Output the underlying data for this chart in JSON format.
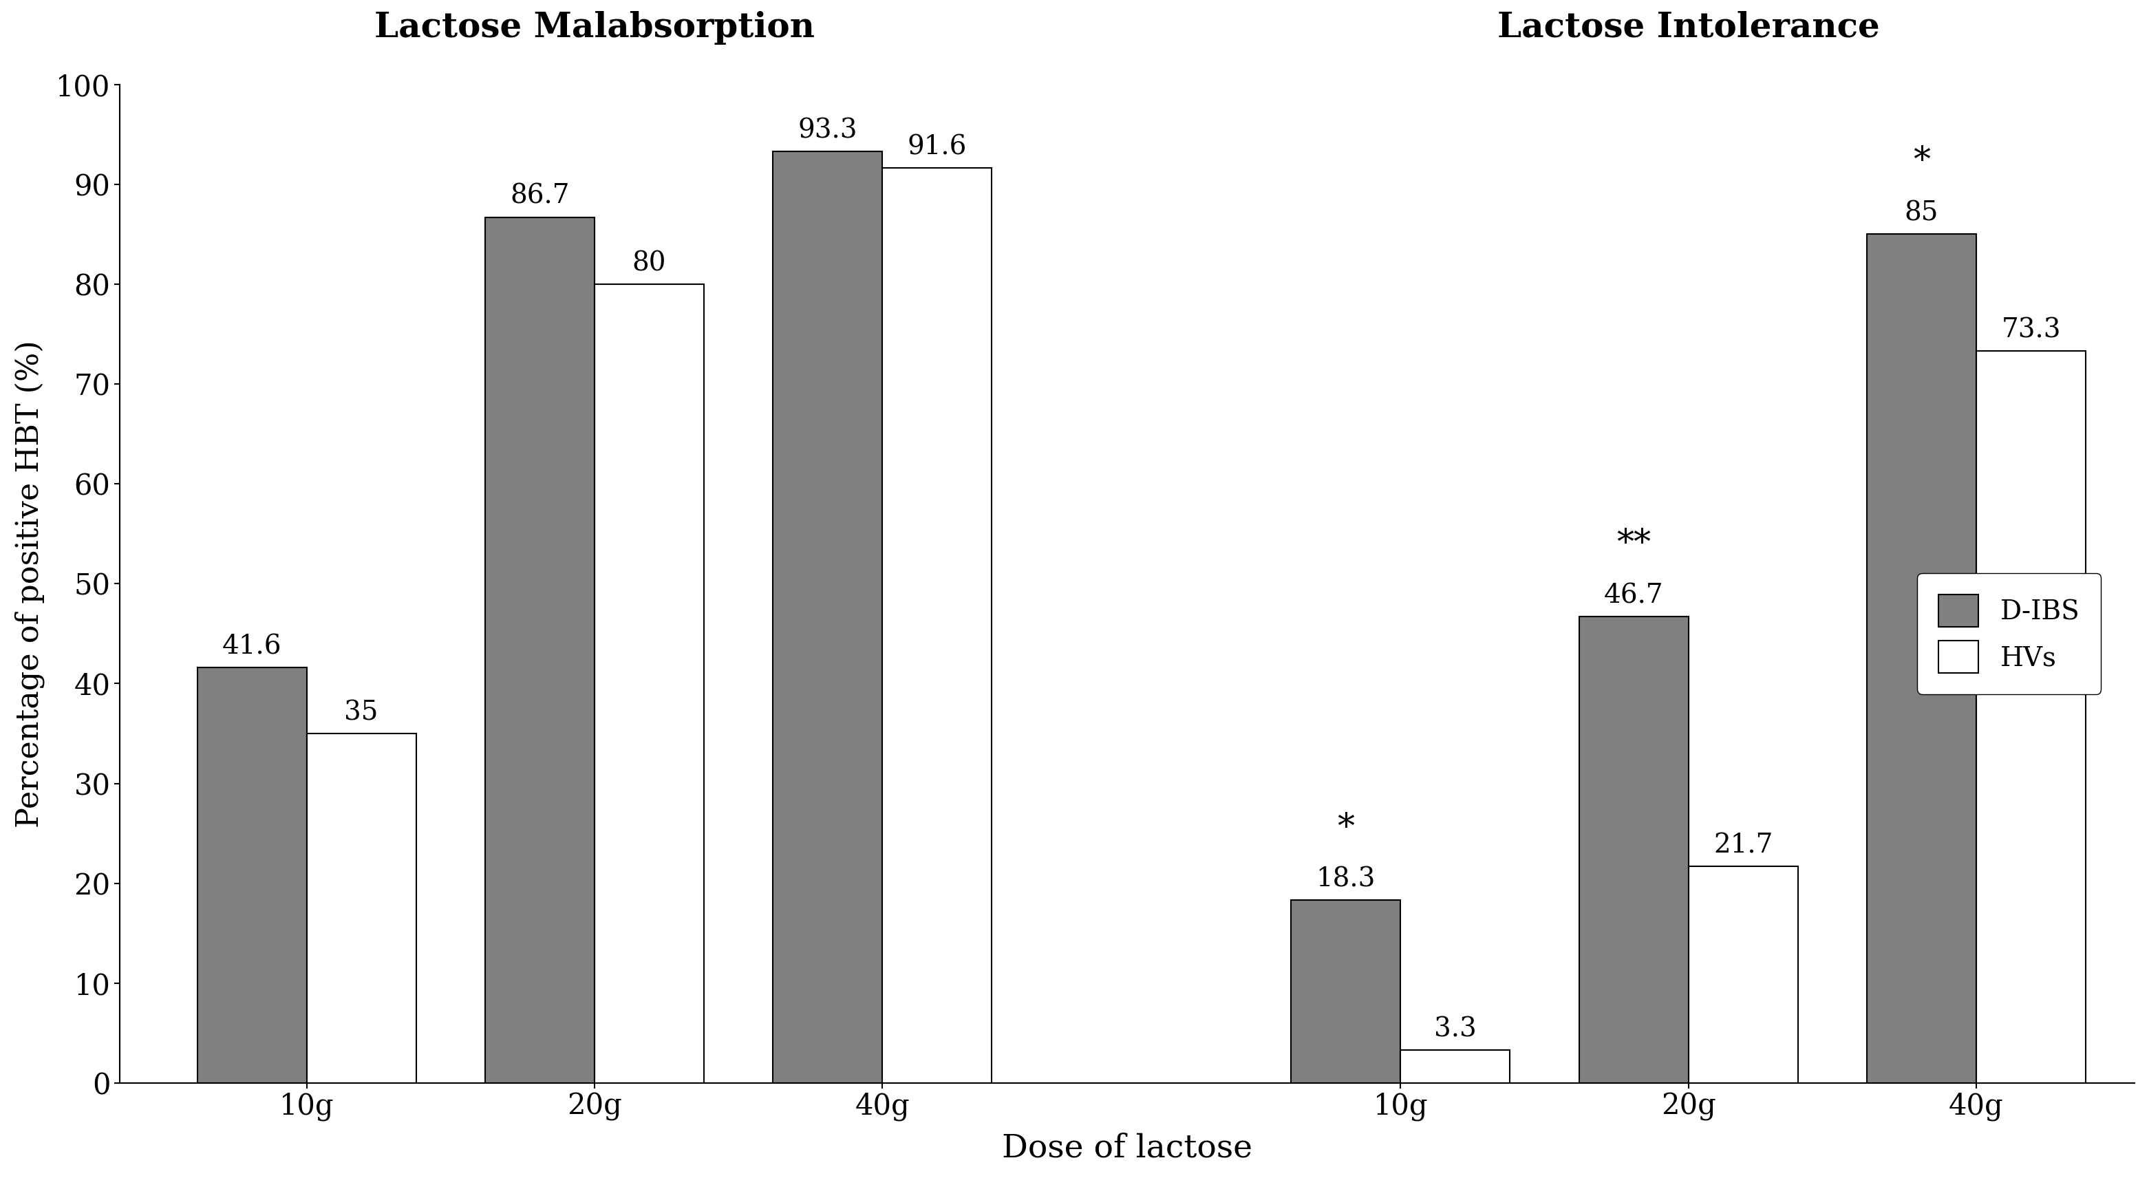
{
  "title_left": "Lactose Malabsorption",
  "title_right": "Lactose Intolerance",
  "xlabel": "Dose of lactose",
  "ylabel": "Percentage of positive HBT (%)",
  "ylim": [
    0,
    100
  ],
  "yticks": [
    0,
    10,
    20,
    30,
    40,
    50,
    60,
    70,
    80,
    90,
    100
  ],
  "groups": [
    "10g",
    "20g",
    "40g",
    "10g",
    "20g",
    "40g"
  ],
  "dibs_values": [
    41.6,
    86.7,
    93.3,
    18.3,
    46.7,
    85.0
  ],
  "hvs_values": [
    35.0,
    80.0,
    91.6,
    3.3,
    21.7,
    73.3
  ],
  "dibs_labels": [
    "41.6",
    "86.7",
    "93.3",
    "18.3",
    "46.7",
    "85"
  ],
  "hvs_labels": [
    "35",
    "80",
    "91.6",
    "3.3",
    "21.7",
    "73.3"
  ],
  "dibs_color": "#808080",
  "hvs_color": "#ffffff",
  "bar_edge_color": "#000000",
  "bar_width": 0.38,
  "significance": {
    "3": "*",
    "4": "**",
    "5": "*"
  },
  "legend_labels": [
    "D-IBS",
    "HVs"
  ],
  "title_fontsize": 36,
  "label_fontsize": 32,
  "tick_fontsize": 30,
  "bar_label_fontsize": 28,
  "sig_fontsize": 32,
  "legend_fontsize": 28
}
